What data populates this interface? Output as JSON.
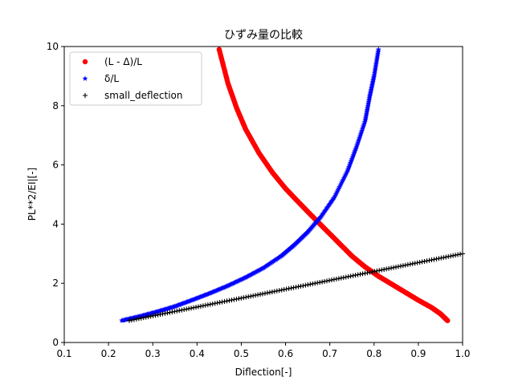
{
  "chart_data": {
    "type": "scatter",
    "title": "ひずみ量の比較",
    "xlabel": "Diflection[-]",
    "ylabel": "PL**2/EI|[-]",
    "xlim": [
      0.1,
      1.0
    ],
    "ylim": [
      0,
      10
    ],
    "xticks": [
      "0.1",
      "0.2",
      "0.3",
      "0.4",
      "0.5",
      "0.6",
      "0.7",
      "0.8",
      "0.9",
      "1.0"
    ],
    "yticks": [
      "0",
      "2",
      "4",
      "6",
      "8",
      "10"
    ],
    "grid": false,
    "legend_position": "top-left",
    "series": [
      {
        "name": "(L - Δ)/L",
        "color": "#ff0000",
        "marker": "circle",
        "points": [
          [
            0.966,
            0.74
          ],
          [
            0.95,
            0.97
          ],
          [
            0.93,
            1.18
          ],
          [
            0.9,
            1.43
          ],
          [
            0.87,
            1.7
          ],
          [
            0.84,
            1.97
          ],
          [
            0.81,
            2.24
          ],
          [
            0.78,
            2.55
          ],
          [
            0.75,
            2.92
          ],
          [
            0.72,
            3.37
          ],
          [
            0.69,
            3.82
          ],
          [
            0.66,
            4.27
          ],
          [
            0.63,
            4.73
          ],
          [
            0.6,
            5.2
          ],
          [
            0.57,
            5.75
          ],
          [
            0.54,
            6.4
          ],
          [
            0.51,
            7.2
          ],
          [
            0.49,
            7.9
          ],
          [
            0.47,
            8.75
          ],
          [
            0.45,
            9.9
          ]
        ]
      },
      {
        "name": "δ/L",
        "color": "#0000ff",
        "marker": "star",
        "points": [
          [
            0.23,
            0.74
          ],
          [
            0.27,
            0.88
          ],
          [
            0.31,
            1.04
          ],
          [
            0.35,
            1.22
          ],
          [
            0.39,
            1.44
          ],
          [
            0.43,
            1.67
          ],
          [
            0.47,
            1.92
          ],
          [
            0.51,
            2.2
          ],
          [
            0.55,
            2.52
          ],
          [
            0.59,
            2.92
          ],
          [
            0.62,
            3.3
          ],
          [
            0.65,
            3.73
          ],
          [
            0.68,
            4.25
          ],
          [
            0.71,
            4.9
          ],
          [
            0.74,
            5.8
          ],
          [
            0.76,
            6.6
          ],
          [
            0.78,
            7.5
          ],
          [
            0.79,
            8.3
          ],
          [
            0.8,
            9.0
          ],
          [
            0.81,
            9.9
          ]
        ]
      },
      {
        "name": "small_deflection",
        "color": "#000000",
        "marker": "plus",
        "points": [
          [
            0.247,
            0.74
          ],
          [
            1.0,
            3.0
          ]
        ]
      }
    ]
  }
}
